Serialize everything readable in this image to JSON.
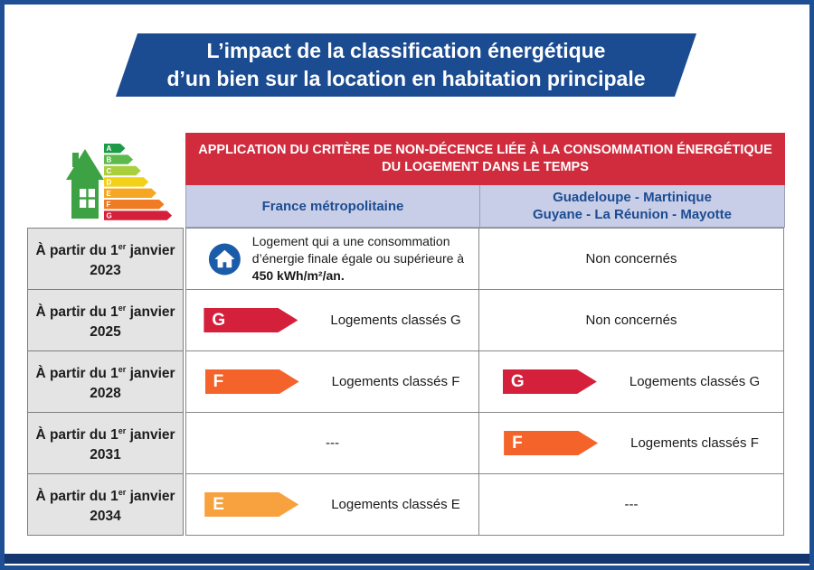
{
  "title": {
    "line1": "L’impact de la classification énergétique",
    "line2": "d’un bien sur la location en habitation principale"
  },
  "table_header": {
    "line1": "APPLICATION DU CRITÈRE DE NON-DÉCENCE LIÉE À LA CONSOMMATION ÉNERGÉTIQUE",
    "line2": "DU LOGEMENT DANS LE TEMPS"
  },
  "columns": {
    "metropolitan": "France métropolitaine",
    "overseas_line1": "Guadeloupe - Martinique",
    "overseas_line2": "Guyane - La Réunion - Mayotte"
  },
  "date_label": {
    "prefix": "À partir du 1",
    "superscript": "er",
    "suffix": " janvier"
  },
  "energy_scale": {
    "icon_name": "energy-house-logo",
    "letters": [
      "A",
      "B",
      "C",
      "D",
      "E",
      "F",
      "G"
    ],
    "colors": [
      "#1e9b47",
      "#5cb94b",
      "#aacf3c",
      "#f2d119",
      "#f5a623",
      "#ef7b23",
      "#d5203b"
    ],
    "house_color": "#3da243"
  },
  "house_icon": {
    "name": "house-in-circle-icon",
    "color": "#1a5ca8"
  },
  "rows": [
    {
      "year": "2023",
      "metropolitan": {
        "type": "house_note",
        "text_normal": "Logement qui a une consommation d’énergie finale égale ou supérieure à ",
        "text_bold": "450 kWh/m²/an."
      },
      "overseas": {
        "type": "text",
        "text": "Non concernés"
      }
    },
    {
      "year": "2025",
      "metropolitan": {
        "type": "arrow",
        "letter": "G",
        "color": "#d5203b",
        "label": "Logements classés G"
      },
      "overseas": {
        "type": "text",
        "text": "Non concernés"
      }
    },
    {
      "year": "2028",
      "metropolitan": {
        "type": "arrow",
        "letter": "F",
        "color": "#f4632a",
        "label": "Logements classés F"
      },
      "overseas": {
        "type": "arrow",
        "letter": "G",
        "color": "#d5203b",
        "label": "Logements classés G"
      }
    },
    {
      "year": "2031",
      "metropolitan": {
        "type": "text",
        "text": "---"
      },
      "overseas": {
        "type": "arrow",
        "letter": "F",
        "color": "#f4632a",
        "label": "Logements classés F"
      }
    },
    {
      "year": "2034",
      "metropolitan": {
        "type": "arrow",
        "letter": "E",
        "color": "#f7a13f",
        "label": "Logements classés E"
      },
      "overseas": {
        "type": "text",
        "text": "---"
      }
    }
  ],
  "colors": {
    "banner_blue": "#1b4c91",
    "border_blue": "#1e4f94",
    "bottom_bar": "#14366e",
    "header_red": "#d02c3e",
    "column_header_bg": "#c9cee8",
    "column_header_text": "#1b4c91",
    "date_cell_bg": "#e4e4e4",
    "grid_border": "#878787"
  }
}
